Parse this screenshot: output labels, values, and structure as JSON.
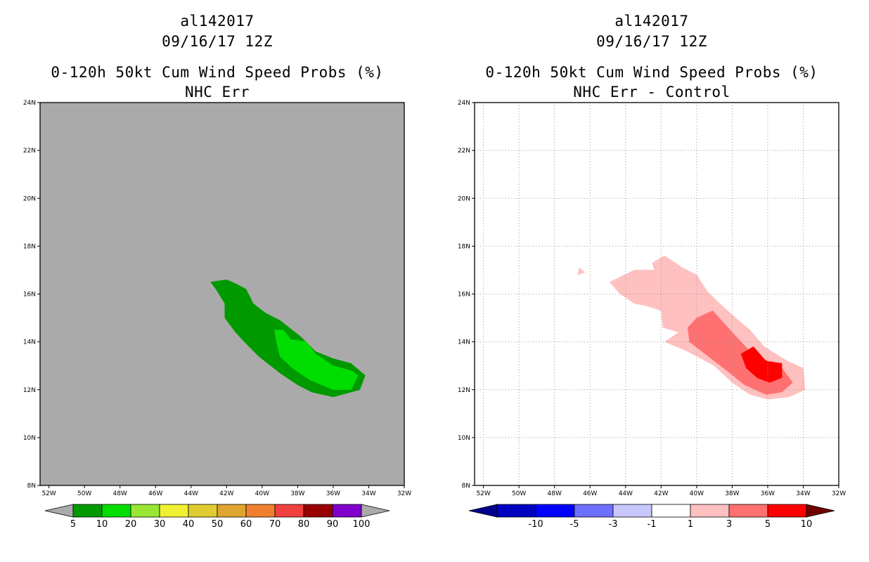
{
  "chart_data": [
    {
      "type": "contour-map",
      "storm_id": "al142017",
      "date": "09/16/17 12Z",
      "title": "0-120h 50kt Cum Wind Speed Probs (%)",
      "subtitle": "NHC Err",
      "xticks": [
        "52W",
        "50W",
        "48W",
        "46W",
        "44W",
        "42W",
        "40W",
        "38W",
        "36W",
        "34W",
        "32W"
      ],
      "yticks": [
        "8N",
        "10N",
        "12N",
        "14N",
        "16N",
        "18N",
        "20N",
        "22N",
        "24N"
      ],
      "xlim": [
        -52.5,
        -32
      ],
      "ylim": [
        8,
        24
      ],
      "background_color": "#aaaaaa",
      "colorbar": {
        "labels": [
          "5",
          "10",
          "20",
          "30",
          "40",
          "50",
          "60",
          "70",
          "80",
          "90",
          "100"
        ],
        "colors": [
          "#009900",
          "#00dd00",
          "#99e633",
          "#f0f033",
          "#e0cc30",
          "#e0a530",
          "#f08030",
          "#f04040",
          "#990000",
          "#8000cc"
        ],
        "end_color": "#aaaaaa"
      },
      "contours": [
        {
          "level": "5-10",
          "color": "#009900",
          "polygon": [
            [
              -42.9,
              16.5
            ],
            [
              -42.0,
              16.6
            ],
            [
              -41.4,
              16.4
            ],
            [
              -40.9,
              16.2
            ],
            [
              -40.5,
              15.6
            ],
            [
              -39.8,
              15.2
            ],
            [
              -39.0,
              14.9
            ],
            [
              -37.8,
              14.2
            ],
            [
              -37.0,
              13.6
            ],
            [
              -36.0,
              13.3
            ],
            [
              -35.0,
              13.1
            ],
            [
              -34.2,
              12.6
            ],
            [
              -34.5,
              12.0
            ],
            [
              -35.5,
              11.8
            ],
            [
              -36.0,
              11.7
            ],
            [
              -37.2,
              11.9
            ],
            [
              -38.0,
              12.2
            ],
            [
              -39.0,
              12.7
            ],
            [
              -40.2,
              13.4
            ],
            [
              -41.0,
              14.0
            ],
            [
              -41.5,
              14.4
            ],
            [
              -42.1,
              15.0
            ],
            [
              -42.1,
              15.6
            ],
            [
              -42.6,
              16.2
            ]
          ]
        },
        {
          "level": "10-20",
          "color": "#00dd00",
          "polygon": [
            [
              -39.3,
              14.5
            ],
            [
              -38.8,
              14.5
            ],
            [
              -38.4,
              14.1
            ],
            [
              -37.5,
              14.0
            ],
            [
              -37.0,
              13.5
            ],
            [
              -36.0,
              13.0
            ],
            [
              -35.0,
              12.8
            ],
            [
              -34.6,
              12.6
            ],
            [
              -35.0,
              12.0
            ],
            [
              -36.0,
              12.0
            ],
            [
              -37.3,
              12.4
            ],
            [
              -38.3,
              12.9
            ],
            [
              -39.0,
              13.4
            ],
            [
              -39.2,
              14.0
            ]
          ]
        }
      ]
    },
    {
      "type": "contour-map",
      "storm_id": "al142017",
      "date": "09/16/17 12Z",
      "title": "0-120h 50kt Cum Wind Speed Probs (%)",
      "subtitle": "NHC Err - Control",
      "xticks": [
        "52W",
        "50W",
        "48W",
        "46W",
        "44W",
        "42W",
        "40W",
        "38W",
        "36W",
        "34W",
        "32W"
      ],
      "yticks": [
        "8N",
        "10N",
        "12N",
        "14N",
        "16N",
        "18N",
        "20N",
        "22N",
        "24N"
      ],
      "xlim": [
        -52.5,
        -32
      ],
      "ylim": [
        8,
        24
      ],
      "grid": true,
      "background_color": "#ffffff",
      "colorbar": {
        "labels": [
          "-10",
          "-5",
          "-3",
          "-1",
          "1",
          "3",
          "5",
          "10"
        ],
        "colors": [
          "#0000c0",
          "#0000ff",
          "#6f6fff",
          "#c8c8ff",
          "#ffffff",
          "#ffc0c0",
          "#ff7070",
          "#ff0000"
        ],
        "left_end_color": "#00008c",
        "right_end_color": "#700000"
      },
      "contours": [
        {
          "level": "1-3",
          "color": "#ffc0c0",
          "polygon": [
            [
              -44.9,
              16.5
            ],
            [
              -43.5,
              17.0
            ],
            [
              -42.4,
              17.0
            ],
            [
              -42.3,
              16.8
            ],
            [
              -43.5,
              15.6
            ],
            [
              -44.3,
              16.0
            ]
          ]
        },
        {
          "level": "1-3",
          "color": "#ffc0c0",
          "polygon": [
            [
              -43.5,
              15.6
            ],
            [
              -42.3,
              16.8
            ],
            [
              -42.5,
              17.3
            ],
            [
              -41.8,
              17.6
            ],
            [
              -40.8,
              17.1
            ],
            [
              -40.0,
              16.8
            ],
            [
              -39.4,
              16.1
            ],
            [
              -38.7,
              15.6
            ],
            [
              -37.8,
              15.0
            ],
            [
              -37.0,
              14.5
            ],
            [
              -36.2,
              13.8
            ],
            [
              -34.9,
              13.2
            ],
            [
              -34.0,
              12.9
            ],
            [
              -33.9,
              12.0
            ],
            [
              -34.8,
              11.7
            ],
            [
              -36.0,
              11.6
            ],
            [
              -37.0,
              11.8
            ],
            [
              -38.0,
              12.3
            ],
            [
              -39.0,
              13.0
            ],
            [
              -40.5,
              13.6
            ],
            [
              -41.8,
              14.0
            ],
            [
              -41.0,
              14.4
            ],
            [
              -41.9,
              14.6
            ],
            [
              -42.0,
              15.3
            ],
            [
              -42.8,
              15.5
            ]
          ]
        },
        {
          "level": "1-3",
          "color": "#ffc0c0",
          "polygon": [
            [
              -46.6,
              17.1
            ],
            [
              -46.3,
              16.9
            ],
            [
              -46.7,
              16.8
            ]
          ]
        },
        {
          "level": "3-5",
          "color": "#ff7070",
          "polygon": [
            [
              -40.5,
              14.6
            ],
            [
              -40.0,
              15.0
            ],
            [
              -39.1,
              15.3
            ],
            [
              -38.0,
              14.4
            ],
            [
              -37.0,
              13.6
            ],
            [
              -36.0,
              13.2
            ],
            [
              -35.2,
              12.9
            ],
            [
              -34.6,
              12.3
            ],
            [
              -35.2,
              11.9
            ],
            [
              -36.1,
              11.8
            ],
            [
              -37.3,
              12.2
            ],
            [
              -38.3,
              12.8
            ],
            [
              -39.0,
              13.2
            ],
            [
              -40.4,
              14.0
            ]
          ]
        },
        {
          "level": "5-10",
          "color": "#ff0000",
          "polygon": [
            [
              -37.5,
              13.5
            ],
            [
              -36.8,
              13.8
            ],
            [
              -36.1,
              13.2
            ],
            [
              -35.2,
              13.1
            ],
            [
              -35.2,
              12.5
            ],
            [
              -35.9,
              12.3
            ],
            [
              -36.6,
              12.5
            ],
            [
              -37.2,
              12.9
            ]
          ]
        }
      ]
    }
  ]
}
